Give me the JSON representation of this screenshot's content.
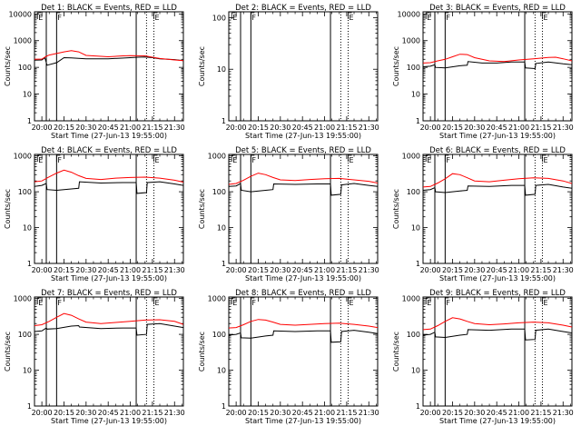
{
  "page": {
    "background": "#ffffff"
  },
  "common": {
    "xlabel": "Start Time (27-Jun-13 19:55:00)",
    "ylabel": "Counts/sec",
    "x_tick_labels": [
      "20:00",
      "20:15",
      "20:30",
      "20:45",
      "21:00",
      "21:15",
      "21:30"
    ],
    "x_ticks_minutes": [
      0,
      15,
      30,
      45,
      60,
      75,
      90
    ],
    "x_range_minutes": [
      -5,
      96
    ],
    "x_origin_time": "20:00",
    "y_scale": "log",
    "series_colors": {
      "events": "#000000",
      "lld": "#ff0000"
    },
    "vertical_markers": {
      "solid_minutes": [
        3,
        10,
        64
      ],
      "dotted_minutes": [
        71,
        76
      ],
      "flags": [
        {
          "minute": -3,
          "label": "E"
        },
        {
          "minute": 10,
          "label": "F"
        },
        {
          "minute": 76,
          "label": "E"
        }
      ]
    }
  },
  "chart_data": [
    {
      "type": "line",
      "title": "Det 1: BLACK = Events, RED = LLD",
      "y_tick_labels": [
        "1",
        "10",
        "100",
        "1000",
        "10000"
      ],
      "ylim": [
        1,
        12000
      ],
      "series": [
        {
          "name": "Events",
          "x": [
            -5,
            0,
            2,
            3,
            3.5,
            10,
            15,
            20,
            30,
            45,
            60,
            65,
            70,
            75,
            80,
            90,
            96
          ],
          "y": [
            185,
            190,
            230,
            150,
            120,
            150,
            230,
            225,
            210,
            210,
            230,
            240,
            245,
            230,
            210,
            195,
            180
          ]
        },
        {
          "name": "LLD",
          "x": [
            -5,
            0,
            3,
            5,
            10,
            15,
            20,
            25,
            30,
            45,
            55,
            60,
            70,
            75,
            80,
            90,
            96
          ],
          "y": [
            200,
            205,
            260,
            290,
            330,
            380,
            420,
            380,
            280,
            250,
            270,
            275,
            270,
            240,
            215,
            190,
            180
          ]
        }
      ]
    },
    {
      "type": "line",
      "title": "Det 2: BLACK = Events, RED = LLD",
      "y_tick_labels": [
        "1",
        "10",
        "100"
      ],
      "ylim": [
        1,
        130
      ],
      "series": []
    },
    {
      "type": "line",
      "title": "Det 3: BLACK = Events, RED = LLD",
      "y_tick_labels": [
        "1",
        "10",
        "100",
        "1000",
        "10000"
      ],
      "ylim": [
        1,
        12000
      ],
      "series": [
        {
          "name": "Events",
          "x": [
            -5,
            0,
            3,
            3.5,
            10,
            20,
            25,
            25.5,
            35,
            45,
            55,
            64,
            64.5,
            71,
            71.5,
            80,
            90,
            96
          ],
          "y": [
            105,
            110,
            125,
            100,
            95,
            115,
            120,
            165,
            145,
            145,
            160,
            160,
            95,
            90,
            140,
            160,
            135,
            125
          ]
        },
        {
          "name": "LLD",
          "x": [
            -5,
            0,
            5,
            10,
            15,
            20,
            25,
            30,
            40,
            50,
            60,
            70,
            80,
            85,
            90,
            96
          ],
          "y": [
            145,
            150,
            175,
            200,
            250,
            310,
            300,
            230,
            175,
            165,
            190,
            210,
            235,
            240,
            210,
            175
          ]
        }
      ]
    },
    {
      "type": "line",
      "title": "Det 4: BLACK = Events, RED = LLD",
      "y_tick_labels": [
        "1",
        "10",
        "100",
        "1000"
      ],
      "ylim": [
        1,
        1100
      ],
      "series": [
        {
          "name": "Events",
          "x": [
            -5,
            0,
            3,
            3.5,
            10,
            20,
            25,
            25.5,
            40,
            55,
            64,
            64.5,
            71,
            71.5,
            80,
            90,
            96
          ],
          "y": [
            140,
            150,
            170,
            115,
            110,
            120,
            125,
            190,
            175,
            180,
            180,
            90,
            95,
            180,
            190,
            165,
            150
          ]
        },
        {
          "name": "LLD",
          "x": [
            -5,
            0,
            5,
            10,
            15,
            20,
            25,
            30,
            40,
            50,
            60,
            70,
            80,
            90,
            96
          ],
          "y": [
            190,
            200,
            260,
            330,
            400,
            350,
            280,
            235,
            220,
            240,
            250,
            255,
            240,
            210,
            185
          ]
        }
      ]
    },
    {
      "type": "line",
      "title": "Det 5: BLACK = Events, RED = LLD",
      "y_tick_labels": [
        "1",
        "10",
        "100",
        "1000"
      ],
      "ylim": [
        1,
        1100
      ],
      "series": [
        {
          "name": "Events",
          "x": [
            -5,
            0,
            3,
            3.5,
            10,
            20,
            25,
            25.5,
            40,
            55,
            64,
            64.5,
            71,
            71.5,
            80,
            90,
            96
          ],
          "y": [
            140,
            145,
            170,
            110,
            100,
            110,
            115,
            165,
            160,
            165,
            165,
            80,
            85,
            155,
            170,
            150,
            140
          ]
        },
        {
          "name": "LLD",
          "x": [
            -5,
            0,
            5,
            10,
            15,
            20,
            25,
            30,
            40,
            50,
            60,
            70,
            80,
            90,
            96
          ],
          "y": [
            160,
            170,
            210,
            270,
            330,
            300,
            250,
            215,
            205,
            220,
            230,
            235,
            215,
            195,
            175
          ]
        }
      ]
    },
    {
      "type": "line",
      "title": "Det 6: BLACK = Events, RED = LLD",
      "y_tick_labels": [
        "1",
        "10",
        "100",
        "1000"
      ],
      "ylim": [
        1,
        1100
      ],
      "series": [
        {
          "name": "Events",
          "x": [
            -5,
            0,
            3,
            3.5,
            10,
            20,
            25,
            25.5,
            40,
            55,
            64,
            64.5,
            71,
            71.5,
            80,
            90,
            96
          ],
          "y": [
            110,
            115,
            130,
            100,
            95,
            105,
            110,
            145,
            140,
            150,
            150,
            80,
            85,
            150,
            160,
            135,
            125
          ]
        },
        {
          "name": "LLD",
          "x": [
            -5,
            0,
            5,
            10,
            15,
            20,
            25,
            30,
            40,
            50,
            60,
            70,
            80,
            90,
            96
          ],
          "y": [
            135,
            140,
            175,
            230,
            320,
            300,
            245,
            200,
            190,
            210,
            230,
            245,
            235,
            200,
            170
          ]
        }
      ]
    },
    {
      "type": "line",
      "title": "Det 7: BLACK = Events, RED = LLD",
      "y_tick_labels": [
        "1",
        "10",
        "100",
        "1000"
      ],
      "ylim": [
        1,
        1100
      ],
      "series": [
        {
          "name": "Events",
          "x": [
            -5,
            0,
            3,
            3.5,
            10,
            20,
            25,
            25.5,
            40,
            55,
            64,
            64.5,
            71,
            71.5,
            80,
            90,
            96
          ],
          "y": [
            120,
            125,
            150,
            140,
            145,
            170,
            175,
            160,
            145,
            150,
            150,
            95,
            100,
            190,
            200,
            170,
            155
          ]
        },
        {
          "name": "LLD",
          "x": [
            -5,
            0,
            5,
            10,
            15,
            20,
            25,
            30,
            40,
            50,
            60,
            70,
            80,
            90,
            96
          ],
          "y": [
            175,
            185,
            230,
            300,
            380,
            340,
            270,
            220,
            200,
            215,
            230,
            250,
            255,
            230,
            190
          ]
        }
      ]
    },
    {
      "type": "line",
      "title": "Det 8: BLACK = Events, RED = LLD",
      "y_tick_labels": [
        "1",
        "10",
        "100",
        "1000"
      ],
      "ylim": [
        1,
        1100
      ],
      "series": [
        {
          "name": "Events",
          "x": [
            -5,
            0,
            3,
            3.5,
            10,
            20,
            25,
            25.5,
            40,
            55,
            64,
            64.5,
            71,
            71.5,
            80,
            90,
            96
          ],
          "y": [
            95,
            100,
            110,
            80,
            78,
            90,
            95,
            125,
            120,
            125,
            125,
            60,
            62,
            120,
            130,
            115,
            105
          ]
        },
        {
          "name": "LLD",
          "x": [
            -5,
            0,
            5,
            10,
            15,
            20,
            25,
            30,
            40,
            50,
            60,
            70,
            80,
            90,
            96
          ],
          "y": [
            150,
            155,
            185,
            230,
            260,
            250,
            220,
            190,
            180,
            190,
            200,
            205,
            190,
            170,
            155
          ]
        }
      ]
    },
    {
      "type": "line",
      "title": "Det 9: BLACK = Events, RED = LLD",
      "y_tick_labels": [
        "1",
        "10",
        "100",
        "1000"
      ],
      "ylim": [
        1,
        1100
      ],
      "series": [
        {
          "name": "Events",
          "x": [
            -5,
            0,
            3,
            3.5,
            10,
            20,
            25,
            25.5,
            40,
            55,
            64,
            64.5,
            71,
            71.5,
            80,
            90,
            96
          ],
          "y": [
            95,
            100,
            115,
            85,
            82,
            95,
            100,
            135,
            130,
            140,
            140,
            70,
            72,
            130,
            140,
            120,
            110
          ]
        },
        {
          "name": "LLD",
          "x": [
            -5,
            0,
            5,
            10,
            15,
            20,
            25,
            30,
            40,
            50,
            60,
            70,
            80,
            90,
            96
          ],
          "y": [
            135,
            140,
            175,
            230,
            290,
            270,
            230,
            200,
            185,
            195,
            210,
            220,
            210,
            180,
            160
          ]
        }
      ]
    }
  ]
}
